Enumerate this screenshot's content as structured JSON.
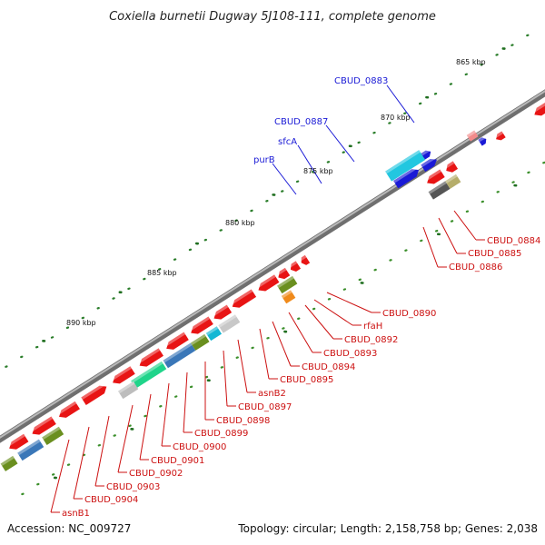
{
  "title": "Coxiella burnetii Dugway 5J108-111, complete genome",
  "accession_text": "Accession: NC_009727",
  "topology_text": "Topology: circular; Length: 2,158,758 bp; Genes: 2,038",
  "colors": {
    "label_blue": "#1a1ad6",
    "label_red": "#cc1010",
    "backbone": "#8a8a8a",
    "dot_dark": "#1f6e1f",
    "dot_light": "#55aa33"
  },
  "ticks": [
    {
      "text": "865 kbp"
    },
    {
      "text": "870 kbp"
    },
    {
      "text": "875 kbp"
    },
    {
      "text": "880 kbp"
    },
    {
      "text": "885 kbp"
    },
    {
      "text": "890 kbp"
    }
  ],
  "labels_upper": [
    {
      "text": "CBUD_0883"
    },
    {
      "text": "CBUD_0887"
    },
    {
      "text": "sfcA"
    },
    {
      "text": "purB"
    }
  ],
  "labels_lower": [
    {
      "text": "CBUD_0884"
    },
    {
      "text": "CBUD_0885"
    },
    {
      "text": "CBUD_0886"
    },
    {
      "text": "CBUD_0890"
    },
    {
      "text": "rfaH"
    },
    {
      "text": "CBUD_0892"
    },
    {
      "text": "CBUD_0893"
    },
    {
      "text": "CBUD_0894"
    },
    {
      "text": "CBUD_0895"
    },
    {
      "text": "asnB2"
    },
    {
      "text": "CBUD_0897"
    },
    {
      "text": "CBUD_0898"
    },
    {
      "text": "CBUD_0899"
    },
    {
      "text": "CBUD_0900"
    },
    {
      "text": "CBUD_0901"
    },
    {
      "text": "CBUD_0902"
    },
    {
      "text": "CBUD_0903"
    },
    {
      "text": "CBUD_0904"
    },
    {
      "text": "asnB1"
    }
  ]
}
